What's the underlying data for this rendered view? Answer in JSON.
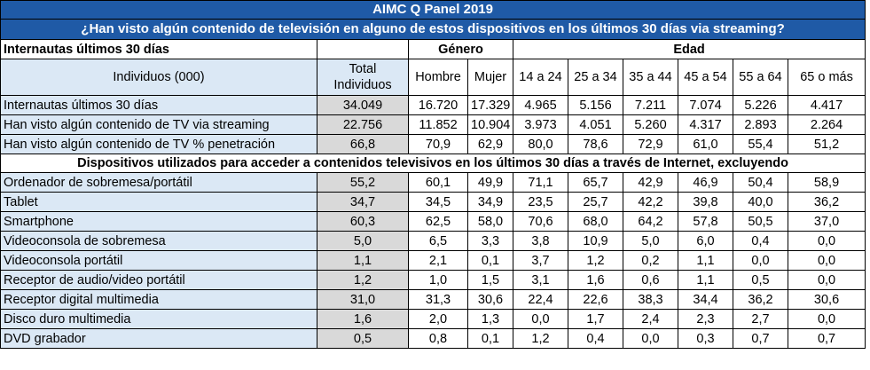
{
  "title": "AIMC Q Panel 2019",
  "question": "¿Han visto algún contenido de televisión en alguno de estos dispositivos en los últimos 30 días via streaming?",
  "header": {
    "group_label": "Internautas últimos 30 días",
    "genero": "Género",
    "edad": "Edad",
    "individuos": "Individuos (000)",
    "total": "Total Individuos",
    "columns": [
      "Hombre",
      "Mujer",
      "14 a 24",
      "25 a 34",
      "35 a 44",
      "45 a 54",
      "55 a 64",
      "65 o más"
    ]
  },
  "top_rows": [
    {
      "label": "Internautas últimos 30 días",
      "total": "34.049",
      "values": [
        "16.720",
        "17.329",
        "4.965",
        "5.156",
        "7.211",
        "7.074",
        "5.226",
        "4.417"
      ]
    },
    {
      "label": "Han visto algún contenido de TV via streaming",
      "total": "22.756",
      "values": [
        "11.852",
        "10.904",
        "3.973",
        "4.051",
        "5.260",
        "4.317",
        "2.893",
        "2.264"
      ]
    },
    {
      "label": "Han visto algún contenido de TV % penetración",
      "total": "66,8",
      "values": [
        "70,9",
        "62,9",
        "80,0",
        "78,6",
        "72,9",
        "61,0",
        "55,4",
        "51,2"
      ]
    }
  ],
  "section_title": "Dispositivos utilizados para acceder a contenidos televisivos en los últimos 30 días a través de Internet, excluyendo",
  "device_rows": [
    {
      "label": "Ordenador de sobremesa/portátil",
      "total": "55,2",
      "values": [
        "60,1",
        "49,9",
        "71,1",
        "65,7",
        "42,9",
        "46,9",
        "50,4",
        "58,9"
      ]
    },
    {
      "label": "Tablet",
      "total": "34,7",
      "values": [
        "34,5",
        "34,9",
        "23,5",
        "25,7",
        "42,2",
        "39,8",
        "40,0",
        "36,2"
      ]
    },
    {
      "label": "Smartphone",
      "total": "60,3",
      "values": [
        "62,5",
        "58,0",
        "70,6",
        "68,0",
        "64,2",
        "57,8",
        "50,5",
        "37,0"
      ]
    },
    {
      "label": "Videoconsola de sobremesa",
      "total": "5,0",
      "values": [
        "6,5",
        "3,3",
        "3,8",
        "10,9",
        "5,0",
        "6,0",
        "0,4",
        "0,0"
      ]
    },
    {
      "label": "Videoconsola portátil",
      "total": "1,1",
      "values": [
        "2,1",
        "0,1",
        "3,7",
        "1,2",
        "0,2",
        "1,1",
        "0,0",
        "0,0"
      ]
    },
    {
      "label": "Receptor de audio/video portátil",
      "total": "1,2",
      "values": [
        "1,0",
        "1,5",
        "3,1",
        "1,6",
        "0,6",
        "1,1",
        "0,5",
        "0,0"
      ]
    },
    {
      "label": "Receptor digital multimedia",
      "total": "31,0",
      "values": [
        "31,3",
        "30,6",
        "22,4",
        "22,6",
        "38,3",
        "34,4",
        "36,2",
        "30,6"
      ]
    },
    {
      "label": "Disco duro multimedia",
      "total": "1,6",
      "values": [
        "2,0",
        "1,3",
        "0,0",
        "1,7",
        "2,4",
        "2,3",
        "2,7",
        "0,0"
      ]
    },
    {
      "label": "DVD grabador",
      "total": "0,5",
      "values": [
        "0,8",
        "0,1",
        "1,2",
        "0,4",
        "0,0",
        "0,3",
        "0,7",
        "0,7"
      ]
    }
  ],
  "colors": {
    "title_bar": "#1f5aa6",
    "label_fill": "#dbe8f5",
    "total_fill": "#d9d9d9"
  }
}
